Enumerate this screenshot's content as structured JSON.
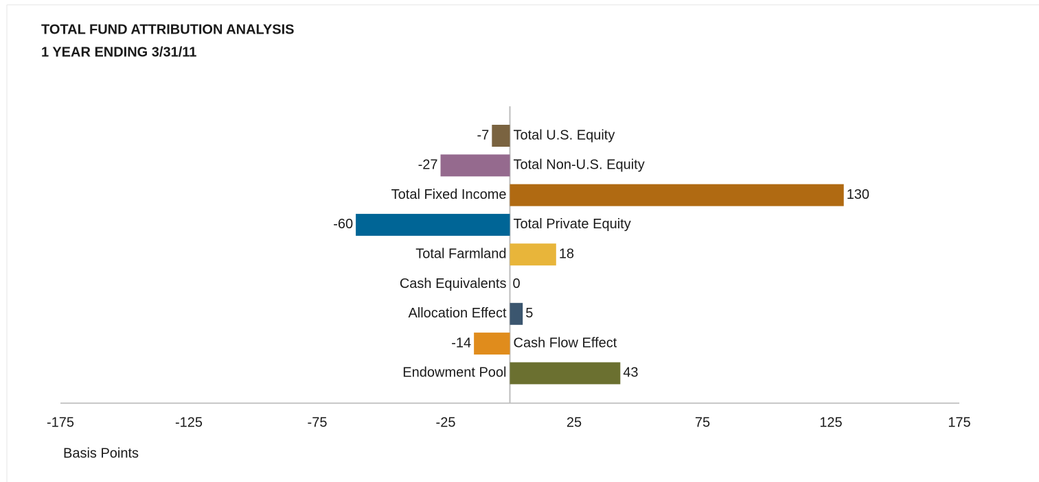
{
  "chart_data": {
    "type": "bar",
    "orientation": "horizontal",
    "title": "TOTAL FUND ATTRIBUTION ANALYSIS",
    "subtitle": "1 YEAR ENDING 3/31/11",
    "x_label": "Basis Points",
    "categories": [
      "Total U.S. Equity",
      "Total Non-U.S. Equity",
      "Total Fixed Income",
      "Total Private Equity",
      "Total Farmland",
      "Cash Equivalents",
      "Allocation Effect",
      "Cash Flow Effect",
      "Endowment Pool"
    ],
    "values": [
      -7,
      -27,
      130,
      -60,
      18,
      0,
      5,
      -14,
      43
    ],
    "colors": [
      "#7a6340",
      "#956a8e",
      "#b06a12",
      "#006596",
      "#e8b53a",
      "#8a8a8a",
      "#3b566f",
      "#e08c1c",
      "#6b7030"
    ],
    "xlim": [
      -175,
      175
    ],
    "xticks": [
      -175,
      -125,
      -75,
      -25,
      25,
      75,
      125,
      175
    ],
    "grid": false
  }
}
